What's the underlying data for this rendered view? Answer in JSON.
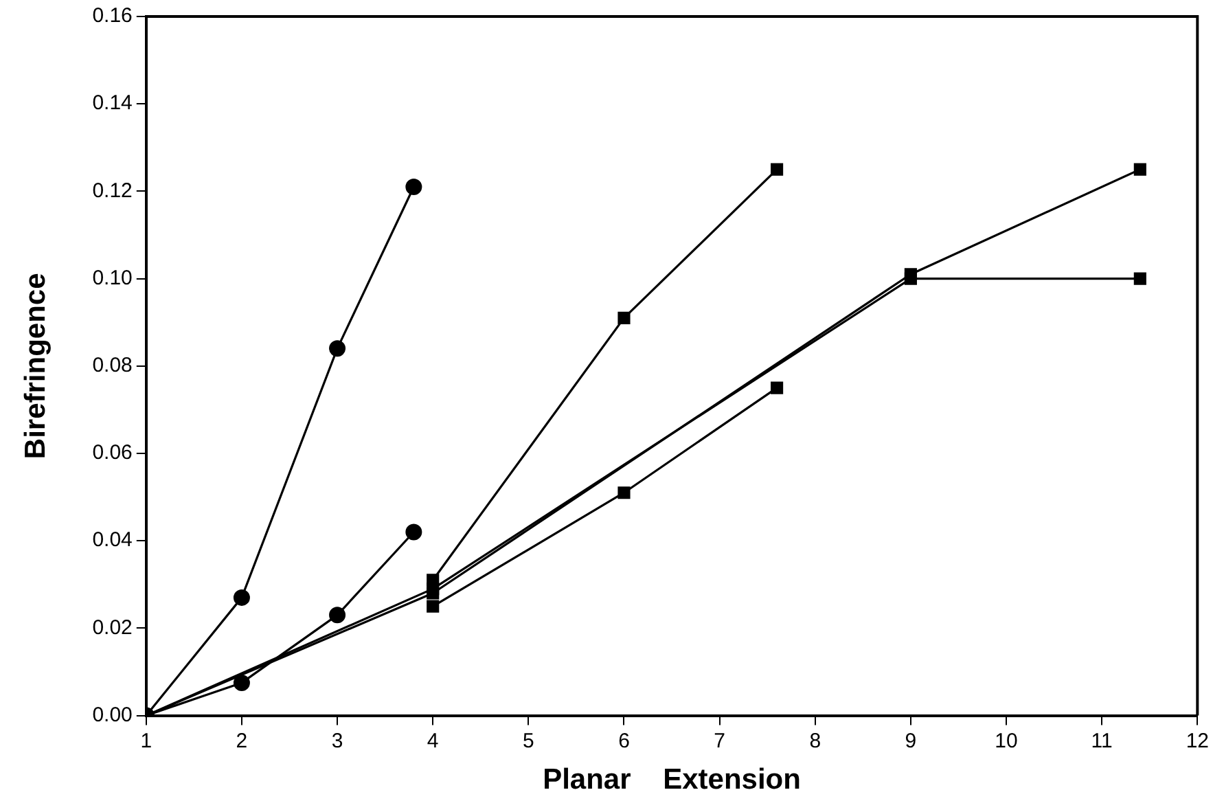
{
  "chart_data": {
    "type": "line",
    "xlabel": "Planar    Extension",
    "ylabel": "Birefringence",
    "xlim": [
      1,
      12
    ],
    "xticks": [
      1,
      2,
      3,
      4,
      5,
      6,
      7,
      8,
      9,
      10,
      11,
      12
    ],
    "ylim": [
      0,
      0.16
    ],
    "yticks": [
      {
        "value": 0,
        "label": "0.00"
      },
      {
        "value": 0.02,
        "label": "0.02"
      },
      {
        "value": 0.04,
        "label": "0.04"
      },
      {
        "value": 0.06,
        "label": "0.06"
      },
      {
        "value": 0.08,
        "label": "0.08"
      },
      {
        "value": 0.1,
        "label": "0.10"
      },
      {
        "value": 0.12,
        "label": "0.12"
      },
      {
        "value": 0.14,
        "label": "0.14"
      },
      {
        "value": 0.16,
        "label": "0.16"
      }
    ],
    "grid": false,
    "legend": false,
    "line_style": "solid",
    "series": [
      {
        "color": "#000000",
        "marker": "circle",
        "x": [
          1,
          2,
          3,
          3.8
        ],
        "values": [
          0,
          0.027,
          0.084,
          0.121
        ]
      },
      {
        "color": "#000000",
        "marker": "circle",
        "x": [
          1,
          2,
          3,
          3.8
        ],
        "values": [
          0,
          0.0075,
          0.023,
          0.042
        ]
      },
      {
        "color": "#000000",
        "marker": "square",
        "x": [
          4,
          6,
          7.6
        ],
        "values": [
          0.031,
          0.091,
          0.125
        ]
      },
      {
        "color": "#000000",
        "marker": "square",
        "x": [
          4,
          6,
          7.6
        ],
        "values": [
          0.025,
          0.051,
          0.075
        ]
      },
      {
        "color": "#000000",
        "marker": "square",
        "x": [
          1,
          4,
          9,
          11.4
        ],
        "values": [
          0,
          0.028,
          0.101,
          0.125
        ]
      },
      {
        "color": "#000000",
        "marker": "square",
        "x": [
          1,
          4,
          9,
          11.4
        ],
        "values": [
          0,
          0.029,
          0.1,
          0.1
        ]
      }
    ]
  }
}
